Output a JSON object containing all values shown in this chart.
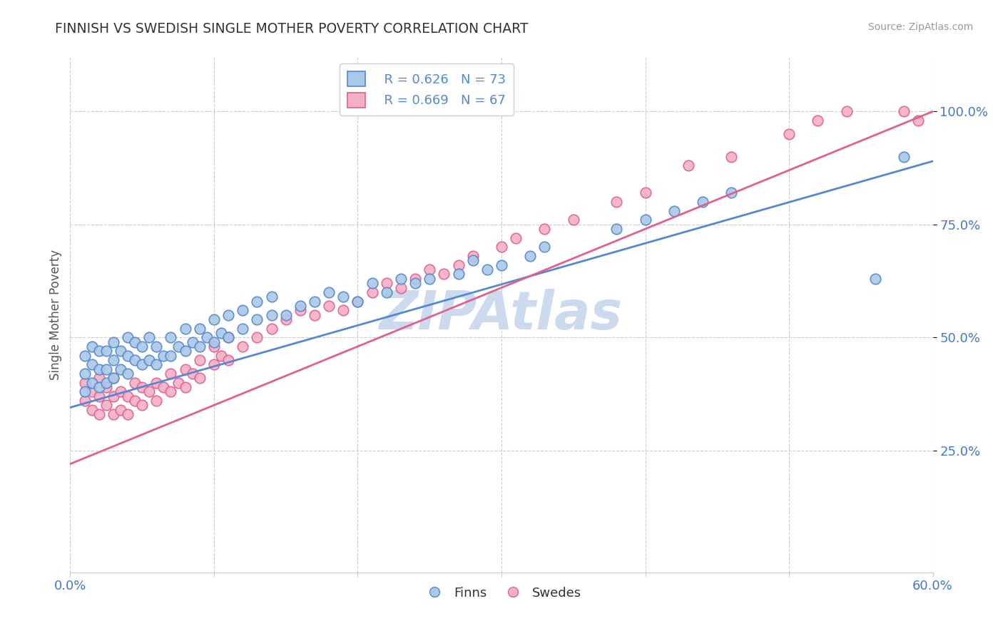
{
  "title": "FINNISH VS SWEDISH SINGLE MOTHER POVERTY CORRELATION CHART",
  "source_text": "Source: ZipAtlas.com",
  "ylabel": "Single Mother Poverty",
  "xlim": [
    0.0,
    0.6
  ],
  "ylim": [
    -0.02,
    1.12
  ],
  "yticks": [
    0.25,
    0.5,
    0.75,
    1.0
  ],
  "ytick_labels": [
    "25.0%",
    "50.0%",
    "75.0%",
    "100.0%"
  ],
  "xtick_show": [
    0.0,
    0.6
  ],
  "xtick_labels_show": [
    "0.0%",
    "60.0%"
  ],
  "legend_finns_R": "R = 0.626",
  "legend_finns_N": "N = 73",
  "legend_swedes_R": "R = 0.669",
  "legend_swedes_N": "N = 67",
  "color_finns": "#aac8e8",
  "color_swedes": "#f5afc8",
  "color_finns_edge": "#5588cc",
  "color_swedes_edge": "#e06090",
  "color_finns_line": "#5588cc",
  "color_swedes_line": "#e06090",
  "watermark_color": "#ccdaee",
  "background_color": "#ffffff",
  "finns_line_x0": 0.0,
  "finns_line_y0": 0.345,
  "finns_line_x1": 0.6,
  "finns_line_y1": 0.89,
  "swedes_line_x0": 0.0,
  "swedes_line_y0": 0.22,
  "swedes_line_x1": 0.6,
  "swedes_line_y1": 1.0,
  "finns_x": [
    0.01,
    0.01,
    0.01,
    0.015,
    0.015,
    0.015,
    0.02,
    0.02,
    0.02,
    0.025,
    0.025,
    0.025,
    0.03,
    0.03,
    0.03,
    0.035,
    0.035,
    0.04,
    0.04,
    0.04,
    0.045,
    0.045,
    0.05,
    0.05,
    0.055,
    0.055,
    0.06,
    0.06,
    0.065,
    0.07,
    0.07,
    0.075,
    0.08,
    0.08,
    0.085,
    0.09,
    0.09,
    0.095,
    0.1,
    0.1,
    0.105,
    0.11,
    0.11,
    0.12,
    0.12,
    0.13,
    0.13,
    0.14,
    0.14,
    0.15,
    0.16,
    0.17,
    0.18,
    0.19,
    0.2,
    0.21,
    0.22,
    0.23,
    0.24,
    0.25,
    0.27,
    0.28,
    0.29,
    0.3,
    0.32,
    0.33,
    0.38,
    0.4,
    0.42,
    0.44,
    0.46,
    0.56,
    0.58
  ],
  "finns_y": [
    0.38,
    0.42,
    0.46,
    0.4,
    0.44,
    0.48,
    0.39,
    0.43,
    0.47,
    0.4,
    0.43,
    0.47,
    0.41,
    0.45,
    0.49,
    0.43,
    0.47,
    0.42,
    0.46,
    0.5,
    0.45,
    0.49,
    0.44,
    0.48,
    0.45,
    0.5,
    0.44,
    0.48,
    0.46,
    0.46,
    0.5,
    0.48,
    0.47,
    0.52,
    0.49,
    0.48,
    0.52,
    0.5,
    0.49,
    0.54,
    0.51,
    0.5,
    0.55,
    0.52,
    0.56,
    0.54,
    0.58,
    0.55,
    0.59,
    0.55,
    0.57,
    0.58,
    0.6,
    0.59,
    0.58,
    0.62,
    0.6,
    0.63,
    0.62,
    0.63,
    0.64,
    0.67,
    0.65,
    0.66,
    0.68,
    0.7,
    0.74,
    0.76,
    0.78,
    0.8,
    0.82,
    0.63,
    0.9
  ],
  "swedes_x": [
    0.01,
    0.01,
    0.015,
    0.015,
    0.02,
    0.02,
    0.02,
    0.025,
    0.025,
    0.03,
    0.03,
    0.03,
    0.035,
    0.035,
    0.04,
    0.04,
    0.045,
    0.045,
    0.05,
    0.05,
    0.055,
    0.06,
    0.06,
    0.065,
    0.07,
    0.07,
    0.075,
    0.08,
    0.08,
    0.085,
    0.09,
    0.09,
    0.1,
    0.1,
    0.105,
    0.11,
    0.11,
    0.12,
    0.13,
    0.14,
    0.15,
    0.16,
    0.17,
    0.18,
    0.19,
    0.2,
    0.21,
    0.22,
    0.23,
    0.24,
    0.25,
    0.26,
    0.27,
    0.28,
    0.3,
    0.31,
    0.33,
    0.35,
    0.38,
    0.4,
    0.43,
    0.46,
    0.5,
    0.52,
    0.54,
    0.58,
    0.59
  ],
  "swedes_y": [
    0.36,
    0.4,
    0.34,
    0.38,
    0.33,
    0.37,
    0.41,
    0.35,
    0.39,
    0.33,
    0.37,
    0.41,
    0.34,
    0.38,
    0.33,
    0.37,
    0.36,
    0.4,
    0.35,
    0.39,
    0.38,
    0.36,
    0.4,
    0.39,
    0.38,
    0.42,
    0.4,
    0.39,
    0.43,
    0.42,
    0.41,
    0.45,
    0.44,
    0.48,
    0.46,
    0.45,
    0.5,
    0.48,
    0.5,
    0.52,
    0.54,
    0.56,
    0.55,
    0.57,
    0.56,
    0.58,
    0.6,
    0.62,
    0.61,
    0.63,
    0.65,
    0.64,
    0.66,
    0.68,
    0.7,
    0.72,
    0.74,
    0.76,
    0.8,
    0.82,
    0.88,
    0.9,
    0.95,
    0.98,
    1.0,
    1.0,
    0.98
  ]
}
